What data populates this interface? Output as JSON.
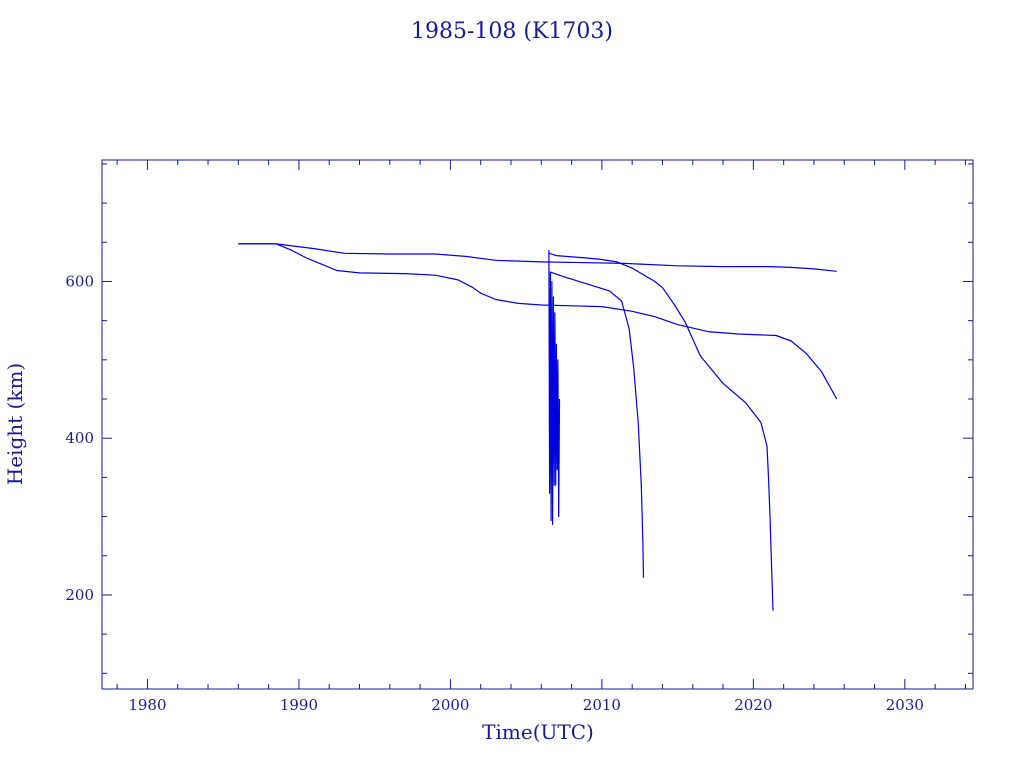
{
  "colors": {
    "axis": "#1a1a8c",
    "line": "#0000dd",
    "text": "#1a1a8c"
  },
  "chart_data": {
    "type": "line",
    "title": "1985-108 (K1703)",
    "xlabel": "Time(UTC)",
    "ylabel": "Height (km)",
    "xlim": [
      1977,
      2034.5
    ],
    "ylim": [
      80,
      755
    ],
    "xticks": [
      1980,
      1990,
      2000,
      2010,
      2020,
      2030
    ],
    "yticks": [
      200,
      400,
      600
    ],
    "grid": false,
    "series": [
      {
        "x": [
          1986.0,
          1988.5,
          1991.0,
          1993.0,
          1996.0,
          1999.0,
          2001.0,
          2003.0,
          2006.0,
          2009.0,
          2011.5,
          2015.0,
          2018.0,
          2021.0,
          2022.5,
          2024.0,
          2025.5
        ],
        "y": [
          648,
          648,
          642,
          636,
          635,
          635,
          632,
          627,
          625,
          624,
          623,
          620,
          619,
          619,
          618,
          616,
          613
        ]
      },
      {
        "x": [
          1986.0,
          1988.5,
          1989.5,
          1990.5,
          1991.5,
          1992.5,
          1994.0,
          1997.0,
          1999.0,
          2000.5,
          2001.5,
          2002.0,
          2003.0,
          2004.5,
          2006.0,
          2008.0,
          2010.0,
          2012.0,
          2013.5,
          2015.0,
          2017.0,
          2019.0,
          2021.5,
          2022.5,
          2023.5,
          2024.5,
          2025.5
        ],
        "y": [
          648,
          648,
          640,
          630,
          622,
          614,
          611,
          610,
          608,
          602,
          592,
          585,
          577,
          572,
          570,
          569,
          568,
          562,
          555,
          545,
          536,
          533,
          531,
          524,
          508,
          485,
          450
        ]
      },
      {
        "x": [
          2006.5,
          2007.0,
          2009.0,
          2010.0,
          2011.0,
          2012.0,
          2013.5,
          2014.0,
          2014.8,
          2015.5,
          2016.5,
          2018.0,
          2019.5,
          2020.5,
          2020.9,
          2021.0,
          2021.1,
          2021.2,
          2021.3
        ],
        "y": [
          636,
          633,
          630,
          628,
          625,
          617,
          600,
          592,
          570,
          548,
          505,
          470,
          445,
          420,
          390,
          350,
          300,
          240,
          180
        ]
      },
      {
        "x": [
          2006.6,
          2007.5,
          2009.0,
          2010.5,
          2011.3,
          2011.8,
          2012.1,
          2012.4,
          2012.6,
          2012.7,
          2012.75
        ],
        "y": [
          612,
          606,
          597,
          588,
          575,
          540,
          490,
          420,
          340,
          270,
          222
        ]
      },
      {
        "x": [
          2006.5,
          2006.55,
          2006.6,
          2006.65,
          2006.7,
          2006.75,
          2006.8,
          2006.85,
          2006.9,
          2006.95,
          2007.0,
          2007.05,
          2007.1,
          2007.15,
          2007.2
        ],
        "y": [
          640,
          330,
          612,
          295,
          600,
          290,
          580,
          340,
          560,
          340,
          520,
          360,
          500,
          300,
          450
        ]
      }
    ]
  }
}
